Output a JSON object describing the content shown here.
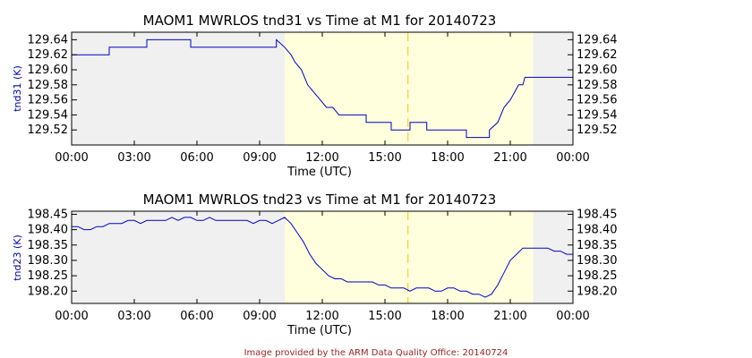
{
  "footer": "Image provided by the ARM Data Quality Office: 20140724",
  "colors": {
    "series": "#0000cc",
    "night_shade": "#f0f0f0",
    "day_shade": "#ffffdd",
    "noon_marker": "#f5d23c",
    "footer": "#9a1f1f"
  },
  "chart_data": [
    {
      "type": "line",
      "title": "MAOM1 MWRLOS tnd31 vs Time at M1 for 20140723",
      "xlabel": "Time (UTC)",
      "ylabel": "tnd31 (K)",
      "xlim": [
        0,
        24
      ],
      "ylim": [
        129.5,
        129.65
      ],
      "x_ticks": [
        "00:00",
        "03:00",
        "06:00",
        "09:00",
        "12:00",
        "15:00",
        "18:00",
        "21:00",
        "00:00"
      ],
      "y_ticks": [
        "129.52",
        "129.54",
        "129.56",
        "129.58",
        "129.60",
        "129.62",
        "129.64"
      ],
      "daylight_start_hour": 10.2,
      "daylight_end_hour": 22.1,
      "noon_marker_hour": 16.1,
      "series": [
        {
          "x": [
            0,
            1.8,
            1.8,
            2.3,
            2.3,
            3.6,
            3.6,
            4.2,
            4.2,
            5.7,
            5.7,
            6.3,
            6.3,
            7.1,
            7.1,
            8.0,
            8.0,
            9.0,
            9.0,
            9.8,
            9.8,
            10.2,
            10.5,
            10.7,
            11.0,
            11.3,
            11.6,
            11.9,
            12.2,
            12.5,
            12.8,
            13.1,
            13.1,
            14.1,
            14.1,
            14.7,
            14.7,
            15.3,
            15.3,
            16.2,
            16.2,
            17.0,
            17.0,
            18.0,
            18.0,
            18.9,
            18.9,
            20.0,
            20.0,
            20.4,
            20.7,
            21.0,
            21.2,
            21.4,
            21.6,
            21.7,
            24
          ],
          "y": [
            129.62,
            129.62,
            129.63,
            129.63,
            129.63,
            129.63,
            129.64,
            129.64,
            129.64,
            129.64,
            129.63,
            129.63,
            129.63,
            129.63,
            129.63,
            129.63,
            129.63,
            129.63,
            129.63,
            129.63,
            129.64,
            129.63,
            129.62,
            129.61,
            129.6,
            129.58,
            129.57,
            129.56,
            129.55,
            129.55,
            129.54,
            129.54,
            129.54,
            129.54,
            129.53,
            129.53,
            129.53,
            129.53,
            129.52,
            129.52,
            129.53,
            129.53,
            129.52,
            129.52,
            129.52,
            129.52,
            129.51,
            129.51,
            129.52,
            129.53,
            129.55,
            129.56,
            129.57,
            129.58,
            129.58,
            129.59,
            129.59
          ]
        }
      ]
    },
    {
      "type": "line",
      "title": "MAOM1 MWRLOS tnd23 vs Time at M1 for 20140723",
      "xlabel": "Time (UTC)",
      "ylabel": "tnd23 (K)",
      "xlim": [
        0,
        24
      ],
      "ylim": [
        198.16,
        198.46
      ],
      "x_ticks": [
        "00:00",
        "03:00",
        "06:00",
        "09:00",
        "12:00",
        "15:00",
        "18:00",
        "21:00",
        "00:00"
      ],
      "y_ticks": [
        "198.20",
        "198.25",
        "198.30",
        "198.35",
        "198.40",
        "198.45"
      ],
      "daylight_start_hour": 10.2,
      "daylight_end_hour": 22.1,
      "noon_marker_hour": 16.1,
      "series": [
        {
          "x": [
            0,
            0.3,
            0.6,
            0.9,
            1.2,
            1.5,
            1.8,
            2.1,
            2.4,
            2.7,
            3.0,
            3.3,
            3.6,
            3.9,
            4.2,
            4.5,
            4.8,
            5.1,
            5.4,
            5.7,
            6.0,
            6.3,
            6.6,
            6.9,
            7.2,
            7.5,
            7.8,
            8.1,
            8.4,
            8.7,
            9.0,
            9.3,
            9.6,
            9.9,
            10.2,
            10.5,
            10.8,
            11.1,
            11.4,
            11.7,
            12.0,
            12.3,
            12.6,
            12.9,
            13.2,
            13.5,
            13.8,
            14.1,
            14.4,
            14.7,
            15.0,
            15.3,
            15.6,
            15.9,
            16.2,
            16.5,
            16.8,
            17.1,
            17.4,
            17.7,
            18.0,
            18.3,
            18.6,
            18.9,
            19.2,
            19.5,
            19.8,
            20.1,
            20.4,
            20.7,
            21.0,
            21.3,
            21.6,
            21.9,
            22.2,
            22.5,
            22.8,
            23.1,
            23.4,
            23.7,
            24
          ],
          "y": [
            198.41,
            198.41,
            198.4,
            198.4,
            198.41,
            198.41,
            198.42,
            198.42,
            198.42,
            198.43,
            198.43,
            198.42,
            198.43,
            198.43,
            198.43,
            198.43,
            198.44,
            198.43,
            198.44,
            198.44,
            198.43,
            198.43,
            198.44,
            198.43,
            198.43,
            198.43,
            198.43,
            198.43,
            198.43,
            198.42,
            198.43,
            198.43,
            198.42,
            198.43,
            198.44,
            198.42,
            198.39,
            198.36,
            198.32,
            198.29,
            198.27,
            198.25,
            198.24,
            198.24,
            198.23,
            198.23,
            198.23,
            198.23,
            198.23,
            198.22,
            198.22,
            198.21,
            198.21,
            198.21,
            198.2,
            198.21,
            198.21,
            198.21,
            198.2,
            198.2,
            198.21,
            198.21,
            198.2,
            198.2,
            198.19,
            198.19,
            198.18,
            198.19,
            198.22,
            198.26,
            198.3,
            198.32,
            198.34,
            198.34,
            198.34,
            198.34,
            198.34,
            198.33,
            198.33,
            198.32,
            198.32
          ]
        }
      ]
    }
  ]
}
